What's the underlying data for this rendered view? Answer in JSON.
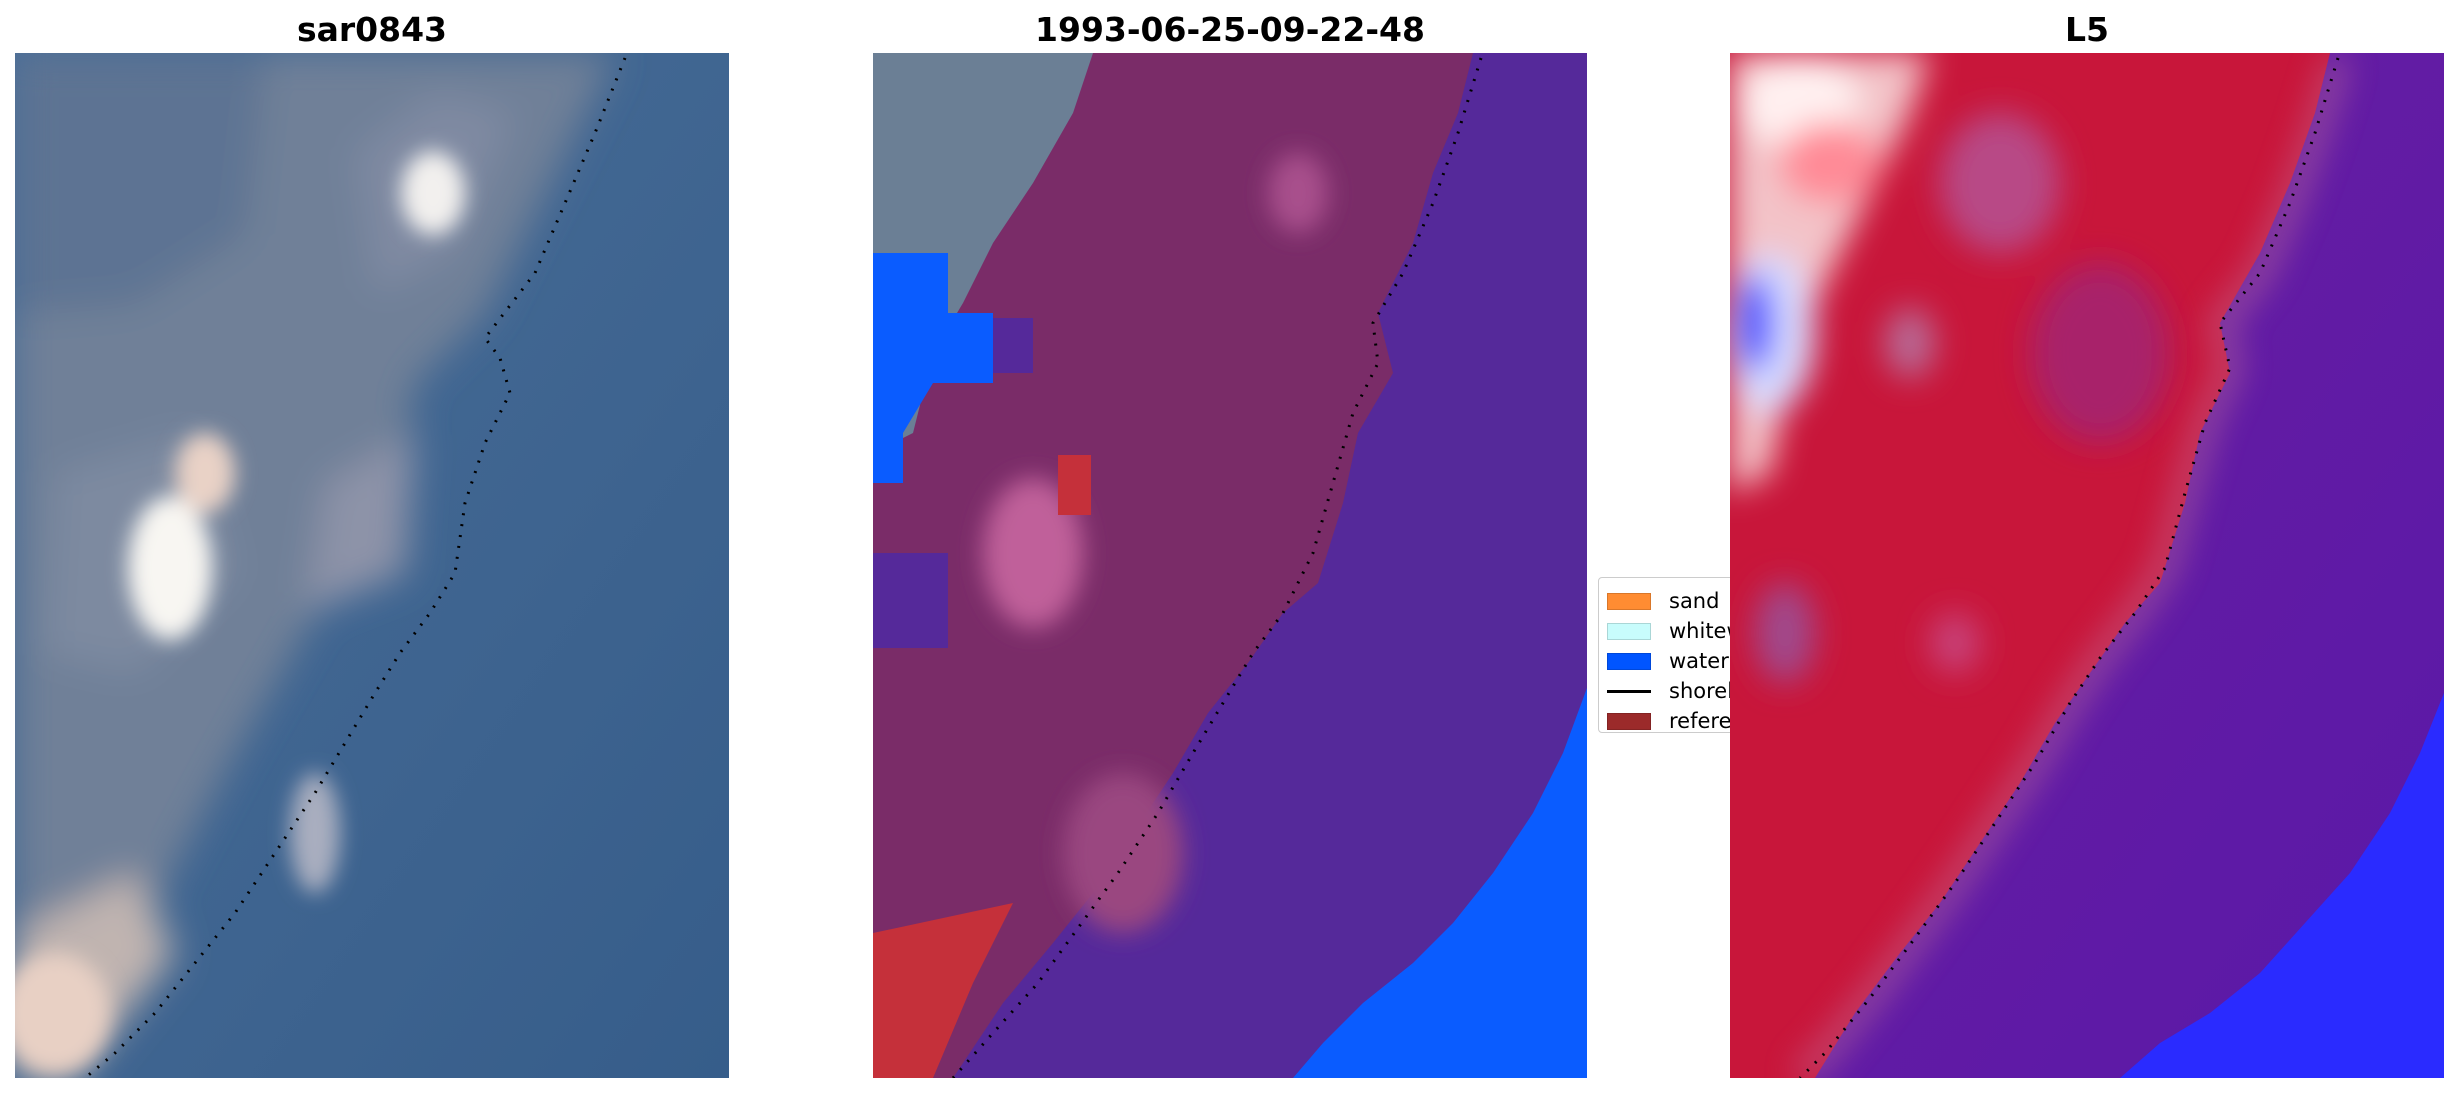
{
  "panels": [
    {
      "title": "sar0843"
    },
    {
      "title": "1993-06-25-09-22-48"
    },
    {
      "title": "L5"
    }
  ],
  "legend": {
    "items": [
      {
        "label": "sand",
        "color": "#ff8c32"
      },
      {
        "label": "whitewater",
        "color": "#c8fcfc"
      },
      {
        "label": "water",
        "color": "#0055ff"
      },
      {
        "label": "shoreline",
        "color": "#000000"
      },
      {
        "label": "reference shoreline",
        "color": "#9b2a2a"
      }
    ]
  },
  "colors": {
    "sea": "#3b6390",
    "land_grey": "#6b7f95",
    "classified_land": "#7a2c68",
    "classified_water": "#55299a",
    "index_red": "#c8163a",
    "index_blue": "#1f2bff"
  }
}
